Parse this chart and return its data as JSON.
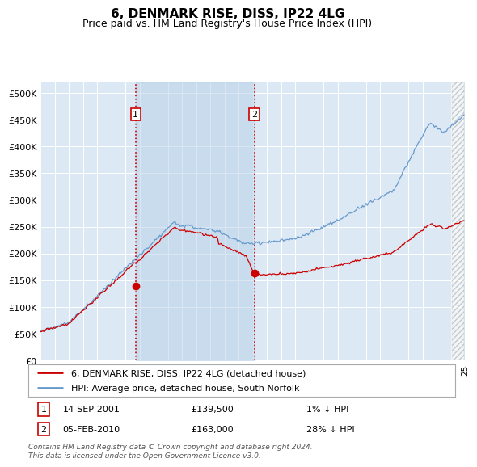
{
  "title": "6, DENMARK RISE, DISS, IP22 4LG",
  "subtitle": "Price paid vs. HM Land Registry's House Price Index (HPI)",
  "title_fontsize": 11,
  "subtitle_fontsize": 9,
  "plot_bg_color": "#dce9f5",
  "ylim": [
    0,
    520000
  ],
  "ytick_labels": [
    "£0",
    "£50K",
    "£100K",
    "£150K",
    "£200K",
    "£250K",
    "£300K",
    "£350K",
    "£400K",
    "£450K",
    "£500K"
  ],
  "sale1_date": "14-SEP-2001",
  "sale1_price": 139500,
  "sale1_hpi_diff": "1% ↓ HPI",
  "sale1_x": 2001.71,
  "sale2_date": "05-FEB-2010",
  "sale2_price": 163000,
  "sale2_hpi_diff": "28% ↓ HPI",
  "sale2_x": 2010.1,
  "legend_line1": "6, DENMARK RISE, DISS, IP22 4LG (detached house)",
  "legend_line2": "HPI: Average price, detached house, South Norfolk",
  "hpi_color": "#6699cc",
  "hpi_fill_color": "#c5d8ef",
  "sale_color": "#cc0000",
  "dashed_line_color": "#cc0000",
  "annotation_box_color": "#cc0000",
  "footer": "Contains HM Land Registry data © Crown copyright and database right 2024.\nThis data is licensed under the Open Government Licence v3.0.",
  "xmin": 1995,
  "xmax": 2025,
  "hatch_start": 2024.0
}
